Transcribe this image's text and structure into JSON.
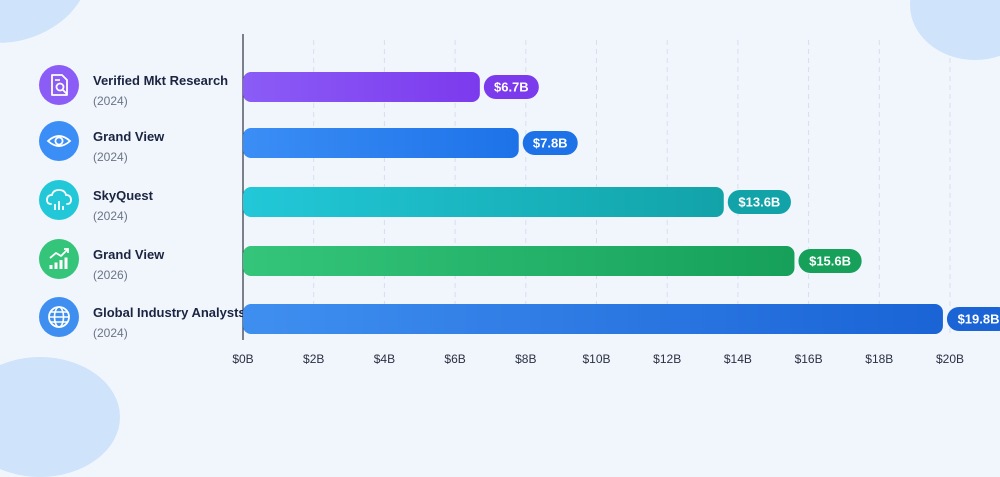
{
  "chart_data": {
    "type": "bar",
    "orientation": "horizontal",
    "categories": [
      {
        "name": "Verified Mkt Research",
        "year": "(2024)",
        "icon": "document-search-icon",
        "color": "#8b5cf6",
        "color_end": "#7c3aed"
      },
      {
        "name": "Grand View",
        "year": "(2024)",
        "icon": "eye-icon",
        "color": "#3b8ef5",
        "color_end": "#1d72e8"
      },
      {
        "name": "SkyQuest",
        "year": "(2024)",
        "icon": "cloud-chart-icon",
        "color": "#22c8d8",
        "color_end": "#12a3a8"
      },
      {
        "name": "Grand View",
        "year": "(2026)",
        "icon": "growth-chart-icon",
        "color": "#34c57a",
        "color_end": "#16a05a"
      },
      {
        "name": "Global Industry Analysts",
        "year": "(2024)",
        "icon": "globe-icon",
        "color": "#3f8ff0",
        "color_end": "#1a64d6"
      }
    ],
    "values": [
      6.7,
      7.8,
      13.6,
      15.6,
      19.8
    ],
    "value_labels": [
      "$6.7B",
      "$7.8B",
      "$13.6B",
      "$15.6B",
      "$19.8B"
    ],
    "xlim": [
      0,
      20
    ],
    "xticks": [
      0,
      2,
      4,
      6,
      8,
      10,
      12,
      14,
      16,
      18,
      20
    ],
    "xtick_labels": [
      "$0B",
      "$2B",
      "$4B",
      "$6B",
      "$8B",
      "$10B",
      "$12B",
      "$14B",
      "$16B",
      "$18B",
      "$20B"
    ],
    "grid": true
  }
}
